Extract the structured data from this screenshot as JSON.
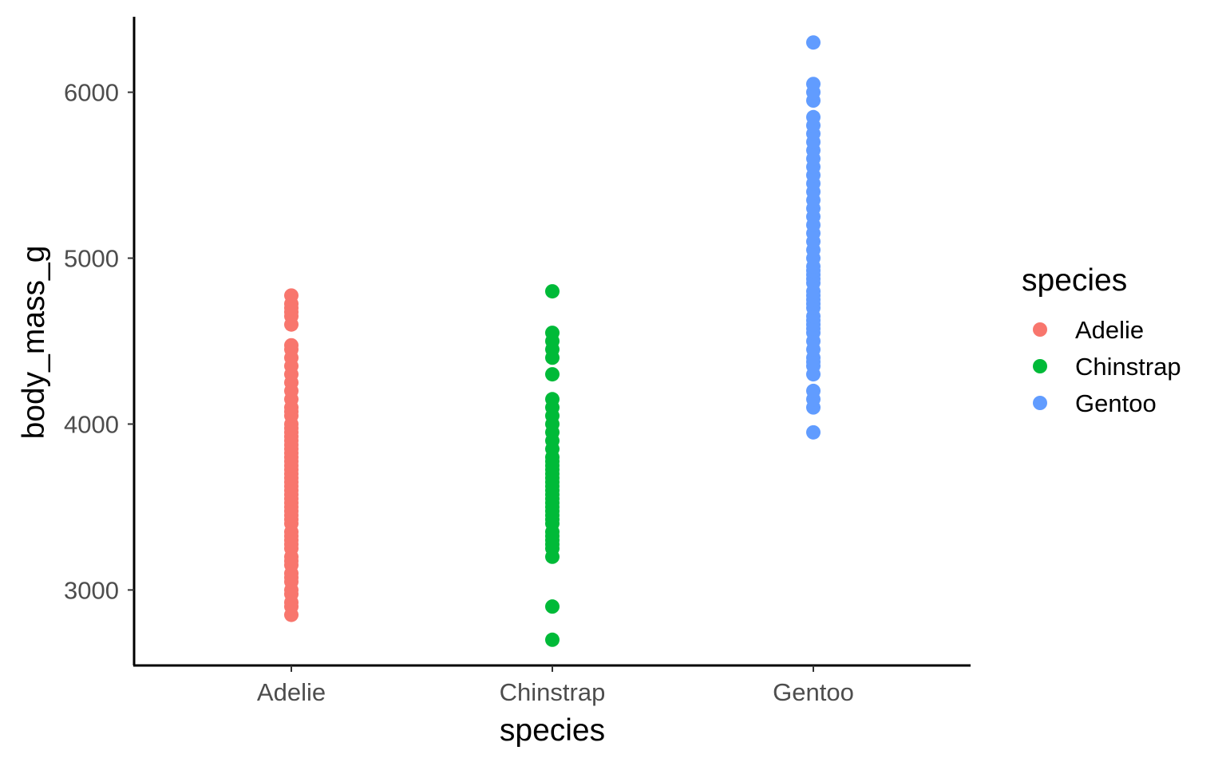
{
  "chart_data": {
    "type": "scatter",
    "title": "",
    "xlabel": "species",
    "ylabel": "body_mass_g",
    "categories": [
      "Adelie",
      "Chinstrap",
      "Gentoo"
    ],
    "y_ticks": [
      3000,
      4000,
      5000,
      6000
    ],
    "y_tick_labels": [
      "3000",
      "4000",
      "5000",
      "6000"
    ],
    "ylim": [
      2545,
      6455
    ],
    "grid": false,
    "legend": {
      "title": "species",
      "placement": "right",
      "entries": [
        "Adelie",
        "Chinstrap",
        "Gentoo"
      ]
    },
    "series": [
      {
        "name": "Adelie",
        "category": "Adelie",
        "color": "#F8766D",
        "values": [
          2850,
          2900,
          2925,
          2975,
          3000,
          3050,
          3075,
          3100,
          3150,
          3175,
          3200,
          3250,
          3275,
          3300,
          3325,
          3350,
          3400,
          3425,
          3450,
          3475,
          3500,
          3525,
          3550,
          3575,
          3600,
          3625,
          3650,
          3675,
          3700,
          3725,
          3750,
          3775,
          3800,
          3825,
          3850,
          3875,
          3900,
          3925,
          3950,
          3975,
          4000,
          4050,
          4075,
          4100,
          4150,
          4200,
          4250,
          4300,
          4350,
          4400,
          4450,
          4475,
          4600,
          4650,
          4675,
          4700,
          4725,
          4775
        ]
      },
      {
        "name": "Chinstrap",
        "category": "Chinstrap",
        "color": "#00BA38",
        "values": [
          2700,
          2900,
          3200,
          3250,
          3275,
          3300,
          3325,
          3350,
          3400,
          3425,
          3450,
          3475,
          3500,
          3525,
          3550,
          3575,
          3600,
          3625,
          3650,
          3675,
          3700,
          3725,
          3750,
          3775,
          3800,
          3850,
          3900,
          3950,
          4000,
          4050,
          4100,
          4150,
          4300,
          4400,
          4450,
          4500,
          4550,
          4800
        ]
      },
      {
        "name": "Gentoo",
        "category": "Gentoo",
        "color": "#619CFF",
        "values": [
          3950,
          4100,
          4150,
          4200,
          4300,
          4350,
          4375,
          4400,
          4450,
          4500,
          4550,
          4575,
          4600,
          4625,
          4650,
          4700,
          4725,
          4750,
          4775,
          4800,
          4850,
          4875,
          4900,
          4925,
          4950,
          5000,
          5050,
          5100,
          5150,
          5200,
          5250,
          5300,
          5350,
          5400,
          5450,
          5500,
          5550,
          5600,
          5650,
          5700,
          5750,
          5800,
          5850,
          5950,
          6000,
          6050,
          6300
        ]
      }
    ]
  }
}
